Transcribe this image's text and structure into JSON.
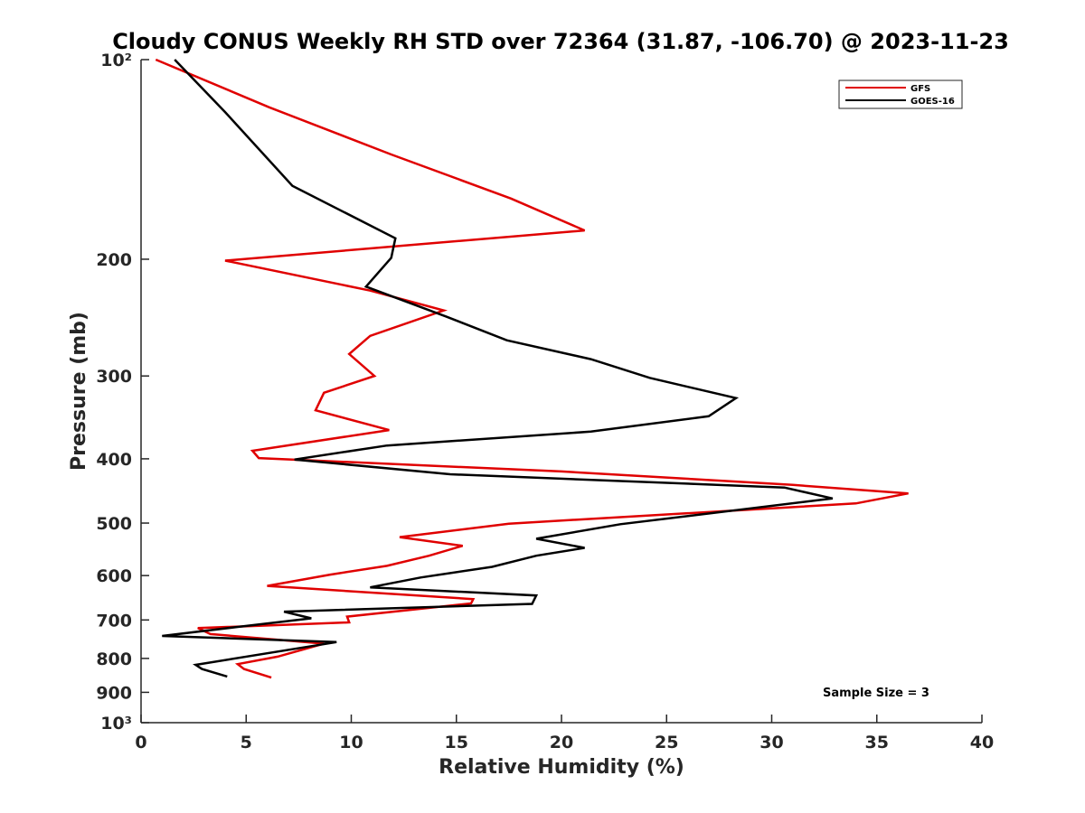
{
  "chart_data": {
    "type": "line",
    "title": "Cloudy CONUS Weekly RH STD over 72364 (31.87, -106.70) @ 2023-11-23",
    "xlabel": "Relative Humidity (%)",
    "ylabel": "Pressure (mb)",
    "xlim": [
      0,
      40
    ],
    "ylim": [
      100,
      1000
    ],
    "y_scale": "log",
    "y_reversed": true,
    "grid": false,
    "legend_position": "top-right",
    "x_ticks": [
      0,
      5,
      10,
      15,
      20,
      25,
      30,
      35,
      40
    ],
    "x_tick_labels": [
      "0",
      "5",
      "10",
      "15",
      "20",
      "25",
      "30",
      "35",
      "40"
    ],
    "y_ticks": [
      100,
      200,
      300,
      400,
      500,
      600,
      700,
      800,
      900,
      1000
    ],
    "y_tick_labels": [
      "10²",
      "200",
      "300",
      "400",
      "500",
      "600",
      "700",
      "800",
      "900",
      "10³"
    ],
    "annotation": "Sample Size = 3",
    "series": [
      {
        "name": "GFS",
        "color": "#e00000",
        "points": [
          [
            0.7,
            100
          ],
          [
            6.1,
            118
          ],
          [
            11.9,
            139
          ],
          [
            17.6,
            162
          ],
          [
            21.1,
            181
          ],
          [
            4.0,
            201
          ],
          [
            10.9,
            223
          ],
          [
            14.4,
            239
          ],
          [
            10.9,
            261
          ],
          [
            9.9,
            278
          ],
          [
            11.1,
            300
          ],
          [
            8.7,
            318
          ],
          [
            8.3,
            338
          ],
          [
            11.8,
            362
          ],
          [
            5.3,
            389
          ],
          [
            5.6,
            399
          ],
          [
            20.0,
            418
          ],
          [
            31.0,
            438
          ],
          [
            36.5,
            451
          ],
          [
            34.0,
            467
          ],
          [
            17.5,
            501
          ],
          [
            12.3,
            525
          ],
          [
            15.3,
            541
          ],
          [
            13.7,
            560
          ],
          [
            11.7,
            580
          ],
          [
            9.0,
            598
          ],
          [
            6.0,
            622
          ],
          [
            15.8,
            651
          ],
          [
            15.7,
            661
          ],
          [
            9.8,
            692
          ],
          [
            9.9,
            706
          ],
          [
            2.7,
            720
          ],
          [
            3.3,
            735
          ],
          [
            8.7,
            760
          ],
          [
            6.5,
            795
          ],
          [
            4.6,
            816
          ],
          [
            4.9,
            830
          ],
          [
            6.2,
            855
          ]
        ]
      },
      {
        "name": "GOES-16",
        "color": "#000000",
        "points": [
          [
            1.6,
            100
          ],
          [
            4.0,
            120
          ],
          [
            7.2,
            155
          ],
          [
            12.1,
            186
          ],
          [
            11.9,
            199
          ],
          [
            10.7,
            220
          ],
          [
            14.5,
            244
          ],
          [
            17.4,
            265
          ],
          [
            21.4,
            283
          ],
          [
            24.2,
            302
          ],
          [
            28.3,
            324
          ],
          [
            27.0,
            345
          ],
          [
            21.4,
            364
          ],
          [
            11.7,
            382
          ],
          [
            7.3,
            401
          ],
          [
            14.7,
            422
          ],
          [
            30.6,
            442
          ],
          [
            32.9,
            459
          ],
          [
            22.8,
            502
          ],
          [
            18.8,
            528
          ],
          [
            21.1,
            545
          ],
          [
            18.8,
            560
          ],
          [
            16.7,
            582
          ],
          [
            13.3,
            604
          ],
          [
            10.9,
            625
          ],
          [
            18.8,
            643
          ],
          [
            18.6,
            662
          ],
          [
            6.8,
            680
          ],
          [
            8.1,
            696
          ],
          [
            4.6,
            717
          ],
          [
            1.0,
            740
          ],
          [
            9.3,
            756
          ],
          [
            2.6,
            818
          ],
          [
            2.9,
            830
          ],
          [
            4.1,
            852
          ]
        ]
      }
    ]
  }
}
